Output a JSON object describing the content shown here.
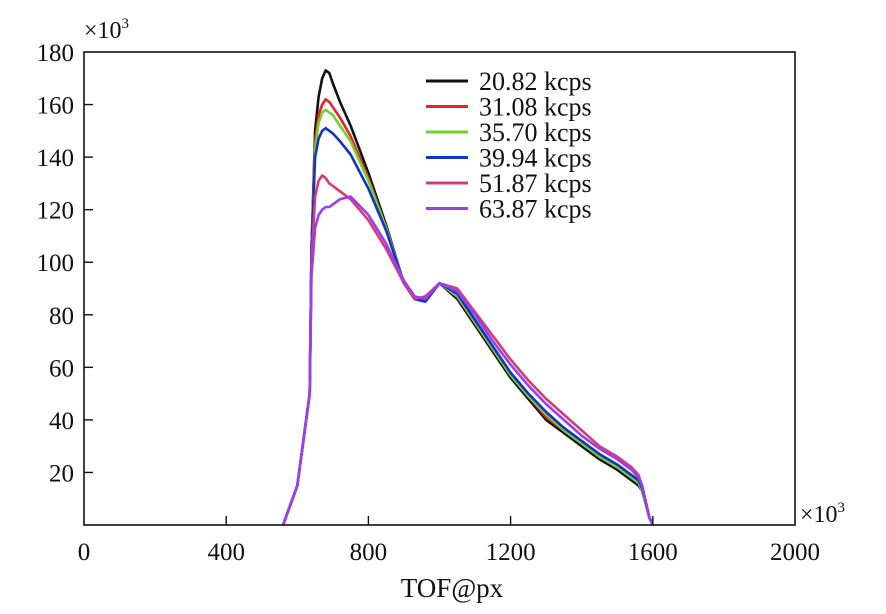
{
  "chart_data": {
    "type": "line",
    "xlabel": "TOF@px",
    "x_multiplier": {
      "base": "×10",
      "exp": "3"
    },
    "y_multiplier": {
      "base": "×10",
      "exp": "3"
    },
    "xlim": [
      0,
      2000
    ],
    "ylim": [
      0,
      180
    ],
    "x_ticks": [
      0,
      400,
      800,
      1200,
      1600,
      2000
    ],
    "y_ticks": [
      20,
      40,
      60,
      80,
      100,
      120,
      140,
      160,
      180
    ],
    "grid": false,
    "legend_position": "top-right",
    "series": [
      {
        "name": "20.82 kcps",
        "color": "#111111",
        "x": [
          560,
          600,
          620,
          635,
          640,
          650,
          660,
          670,
          680,
          690,
          700,
          720,
          750,
          800,
          850,
          900,
          930,
          960,
          1000,
          1050,
          1100,
          1150,
          1200,
          1250,
          1300,
          1350,
          1400,
          1450,
          1500,
          1540,
          1560,
          1570,
          1580,
          1590,
          1600
        ],
        "y": [
          0,
          15,
          35,
          50,
          105,
          150,
          163,
          170,
          173,
          172,
          168,
          161,
          152,
          134,
          114,
          92,
          86,
          85,
          92,
          86,
          76,
          66,
          56,
          48,
          40,
          35,
          30,
          25,
          21,
          17,
          15,
          13,
          8,
          3,
          0
        ]
      },
      {
        "name": "31.08 kcps",
        "color": "#e8212c",
        "x": [
          560,
          600,
          620,
          635,
          640,
          650,
          660,
          670,
          680,
          690,
          700,
          720,
          750,
          800,
          850,
          900,
          930,
          960,
          1000,
          1050,
          1100,
          1150,
          1200,
          1250,
          1300,
          1350,
          1400,
          1450,
          1500,
          1540,
          1560,
          1570,
          1580,
          1590,
          1600
        ],
        "y": [
          0,
          15,
          35,
          50,
          105,
          146,
          156,
          160,
          162,
          161,
          159,
          155,
          148,
          132,
          113,
          92,
          86,
          85,
          92,
          87,
          77,
          67,
          57,
          49,
          41,
          36,
          31,
          26,
          22,
          18,
          16,
          13,
          8,
          3,
          0
        ]
      },
      {
        "name": "35.70 kcps",
        "color": "#6fd12a",
        "x": [
          560,
          600,
          620,
          635,
          640,
          650,
          660,
          670,
          680,
          690,
          700,
          720,
          750,
          800,
          850,
          900,
          930,
          960,
          1000,
          1050,
          1100,
          1150,
          1200,
          1250,
          1300,
          1350,
          1400,
          1450,
          1500,
          1540,
          1560,
          1570,
          1580,
          1590,
          1600
        ],
        "y": [
          0,
          15,
          35,
          50,
          105,
          143,
          153,
          157,
          158,
          157,
          156,
          152,
          146,
          131,
          113,
          92,
          86,
          85,
          92,
          87,
          77,
          67,
          57,
          49,
          42,
          36,
          31,
          26,
          22,
          18,
          16,
          13,
          8,
          3,
          0
        ]
      },
      {
        "name": "39.94 kcps",
        "color": "#1333c9",
        "x": [
          560,
          600,
          620,
          635,
          640,
          650,
          660,
          670,
          680,
          690,
          700,
          720,
          750,
          800,
          850,
          900,
          930,
          960,
          1000,
          1050,
          1100,
          1150,
          1200,
          1250,
          1300,
          1350,
          1400,
          1450,
          1500,
          1540,
          1560,
          1570,
          1580,
          1590,
          1600
        ],
        "y": [
          0,
          15,
          35,
          50,
          105,
          140,
          147,
          150,
          151,
          150,
          149,
          146,
          141,
          128,
          112,
          92,
          86,
          85,
          92,
          88,
          78,
          68,
          58,
          50,
          43,
          37,
          32,
          27,
          23,
          19,
          17,
          14,
          9,
          3,
          0
        ]
      },
      {
        "name": "51.87 kcps",
        "color": "#cf3f74",
        "x": [
          560,
          600,
          620,
          635,
          640,
          650,
          660,
          670,
          680,
          690,
          700,
          720,
          750,
          800,
          850,
          900,
          930,
          960,
          1000,
          1050,
          1100,
          1150,
          1200,
          1250,
          1300,
          1350,
          1400,
          1450,
          1500,
          1540,
          1560,
          1570,
          1580,
          1590,
          1600
        ],
        "y": [
          0,
          15,
          35,
          50,
          100,
          125,
          131,
          133,
          132,
          130,
          129,
          127,
          124,
          116,
          105,
          92,
          86,
          87,
          92,
          90,
          81,
          72,
          63,
          55,
          48,
          42,
          36,
          30,
          26,
          22,
          19,
          15,
          9,
          3,
          0
        ]
      },
      {
        "name": "63.87 kcps",
        "color": "#9a3ef0",
        "x": [
          560,
          600,
          620,
          635,
          640,
          650,
          660,
          670,
          680,
          690,
          700,
          720,
          750,
          800,
          850,
          900,
          930,
          960,
          1000,
          1050,
          1100,
          1150,
          1200,
          1250,
          1300,
          1350,
          1400,
          1450,
          1500,
          1540,
          1560,
          1570,
          1580,
          1590,
          1600
        ],
        "y": [
          0,
          15,
          35,
          50,
          95,
          113,
          118,
          120,
          121,
          121,
          122,
          124,
          125,
          118,
          107,
          93,
          87,
          86,
          92,
          89,
          80,
          70,
          61,
          53,
          46,
          40,
          34,
          29,
          25,
          21,
          18,
          15,
          9,
          3,
          0
        ]
      }
    ]
  }
}
